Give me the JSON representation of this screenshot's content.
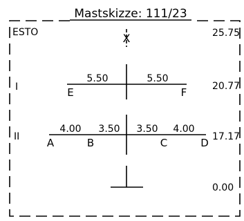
{
  "title": "Mastskizze: 111/23",
  "corner_label": "ESTO",
  "top_point": "X",
  "levels": [
    {
      "name": "",
      "height": "25.75"
    },
    {
      "name": "I",
      "height": "20.77"
    },
    {
      "name": "II",
      "height": "17.17"
    },
    {
      "name": "",
      "height": "0.00"
    }
  ],
  "arm_I": {
    "points": [
      "E",
      "F"
    ],
    "lengths": [
      "5.50",
      "5.50"
    ]
  },
  "arm_II": {
    "points": [
      "A",
      "B",
      "C",
      "D"
    ],
    "lengths": [
      "4.00",
      "3.50",
      "3.50",
      "4.00"
    ]
  }
}
